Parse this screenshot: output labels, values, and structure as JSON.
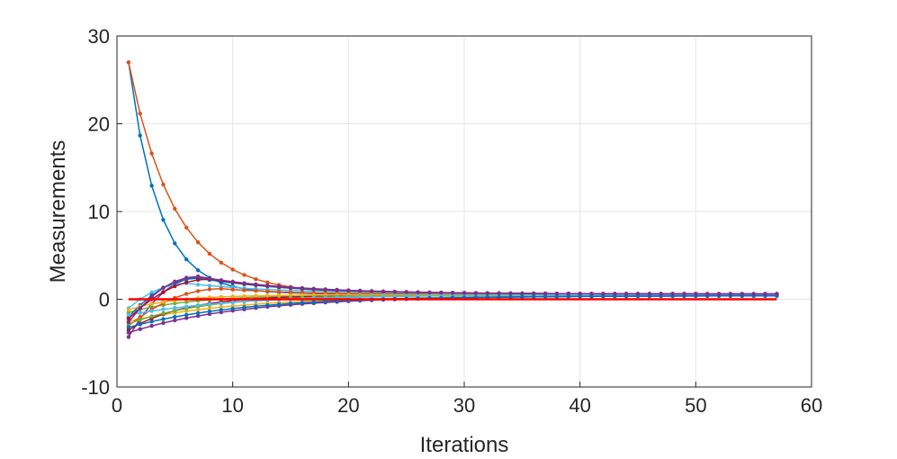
{
  "chart_data": {
    "type": "line",
    "title": "",
    "xlabel": "Iterations",
    "ylabel": "Measurements",
    "xlim": [
      0,
      60
    ],
    "ylim": [
      -10,
      30
    ],
    "xticks": [
      0,
      10,
      20,
      30,
      40,
      50,
      60
    ],
    "yticks": [
      -10,
      0,
      10,
      20,
      30
    ],
    "xtick_labels": [
      "0",
      "10",
      "20",
      "30",
      "40",
      "50",
      "60"
    ],
    "ytick_labels": [
      "-10",
      "0",
      "10",
      "20",
      "30"
    ],
    "grid": true,
    "x_range": [
      1,
      57
    ],
    "series": [
      {
        "color": "#0072BD",
        "start": 27.0,
        "end": 0.6,
        "rate": 0.38
      },
      {
        "color": "#D95319",
        "start": 27.0,
        "end": 0.6,
        "rate": 0.25
      },
      {
        "color": "#EDB120",
        "start": -2.5,
        "end": 0.4,
        "rate": 0.1
      },
      {
        "color": "#7E2F8E",
        "start": -4.3,
        "end": 0.5,
        "rate": 0.12,
        "peak": 2.5,
        "peak_x": 7
      },
      {
        "color": "#77AC30",
        "start": -1.5,
        "end": 0.5,
        "rate": 0.18
      },
      {
        "color": "#4DBEEE",
        "start": -1.0,
        "end": 0.6,
        "rate": 0.12,
        "peak": 1.8,
        "peak_x": 6
      },
      {
        "color": "#A2142F",
        "start": -3.5,
        "end": 0.5,
        "rate": 0.2
      },
      {
        "color": "#0072BD",
        "start": -2.0,
        "end": 0.6,
        "rate": 0.12,
        "peak": 2.4,
        "peak_x": 7
      },
      {
        "color": "#D95319",
        "start": -3.0,
        "end": 0.5,
        "rate": 0.14,
        "peak": 1.2,
        "peak_x": 9
      },
      {
        "color": "#EDB120",
        "start": -1.2,
        "end": 0.5,
        "rate": 0.25
      },
      {
        "color": "#7E2F8E",
        "start": -3.8,
        "end": 0.4,
        "rate": 0.1
      },
      {
        "color": "#77AC30",
        "start": -2.8,
        "end": 0.5,
        "rate": 0.15
      },
      {
        "color": "#4DBEEE",
        "start": -1.8,
        "end": 0.5,
        "rate": 0.11
      },
      {
        "color": "#A2142F",
        "start": -2.2,
        "end": 0.6,
        "rate": 0.12,
        "peak": 2.3,
        "peak_x": 8
      },
      {
        "color": "#0072BD",
        "start": -3.2,
        "end": 0.4,
        "rate": 0.1
      },
      {
        "color": "#7E2F8E",
        "start": -2.6,
        "end": 0.6,
        "rate": 0.12,
        "peak": 2.6,
        "peak_x": 7
      }
    ],
    "reference_line": {
      "color": "#FF0000",
      "y": 0,
      "x_range": [
        1,
        57
      ]
    }
  }
}
